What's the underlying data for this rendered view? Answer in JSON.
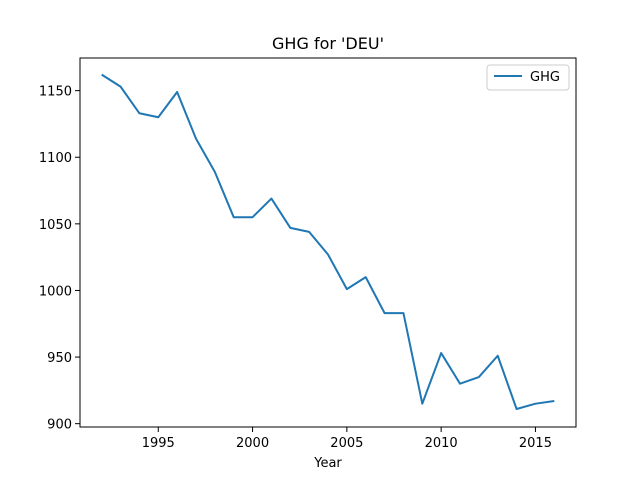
{
  "chart_data": {
    "type": "line",
    "title": "GHG for 'DEU'",
    "xlabel": "Year",
    "ylabel": "",
    "xlim": [
      1990.85,
      2017.15
    ],
    "ylim": [
      897.5,
      1174.5
    ],
    "xticks": [
      1995,
      2000,
      2005,
      2010,
      2015
    ],
    "yticks": [
      900,
      950,
      1000,
      1050,
      1100,
      1150
    ],
    "grid": false,
    "legend_position": "top-right",
    "series": [
      {
        "name": "GHG",
        "color": "#1f77b4",
        "x": [
          1992,
          1993,
          1994,
          1995,
          1996,
          1997,
          1998,
          1999,
          2000,
          2001,
          2002,
          2003,
          2004,
          2005,
          2006,
          2007,
          2008,
          2009,
          2010,
          2011,
          2012,
          2013,
          2014,
          2015,
          2016
        ],
        "y": [
          1162,
          1153,
          1133,
          1130,
          1149,
          1114,
          1089,
          1055,
          1055,
          1069,
          1047,
          1044,
          1027,
          1001,
          1010,
          983,
          983,
          915,
          953,
          930,
          935,
          951,
          911,
          915,
          917
        ]
      }
    ]
  }
}
